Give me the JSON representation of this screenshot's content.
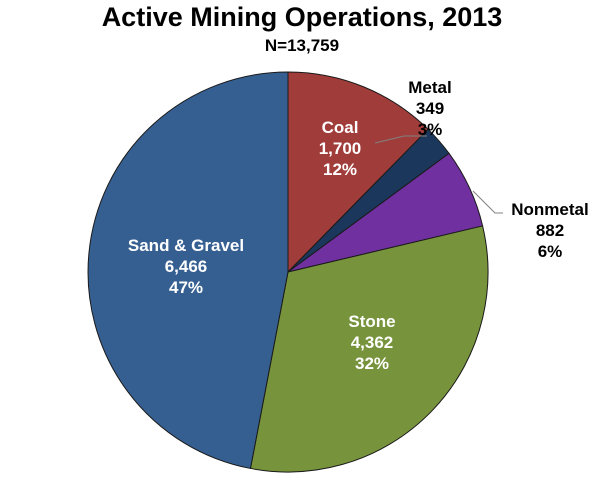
{
  "chart_data": {
    "type": "pie",
    "title": "Active Mining Operations, 2013",
    "subtitle": "N=13,759",
    "total": 13759,
    "start_angle": "12 o'clock, clockwise",
    "slices": [
      {
        "label": "Coal",
        "value": 1700,
        "value_text": "1,700",
        "percent": "12%",
        "color": "#a03c3a",
        "label_color": "#ffffff"
      },
      {
        "label": "Metal",
        "value": 349,
        "value_text": "349",
        "percent": "3%",
        "color": "#1b385c",
        "label_color": "#000000"
      },
      {
        "label": "Nonmetal",
        "value": 882,
        "value_text": "882",
        "percent": "6%",
        "color": "#7030a0",
        "label_color": "#000000"
      },
      {
        "label": "Stone",
        "value": 4362,
        "value_text": "4,362",
        "percent": "32%",
        "color": "#77933c",
        "label_color": "#ffffff"
      },
      {
        "label": "Sand & Gravel",
        "value": 6466,
        "value_text": "6,466",
        "percent": "47%",
        "color": "#365f91",
        "label_color": "#ffffff"
      }
    ],
    "legend": "none (data labels on slices)"
  }
}
